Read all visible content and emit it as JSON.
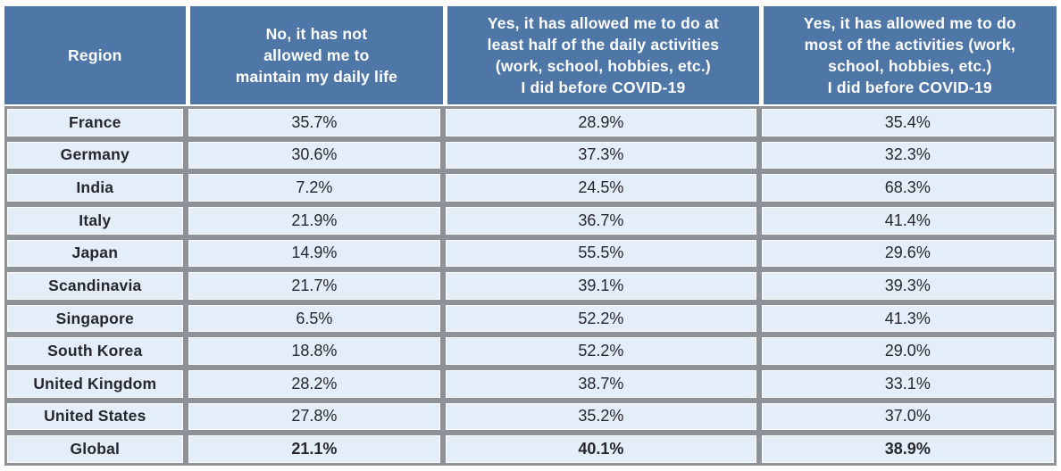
{
  "colors": {
    "header_bg": "#4E77A8",
    "header_text": "#FFFFFF",
    "cell_bg": "#E4EEF9",
    "grid_border": "#8C9298",
    "body_text": "#26262E",
    "page_bg": "#FFFFFF"
  },
  "table": {
    "columns": [
      {
        "id": "region",
        "label": "Region"
      },
      {
        "id": "no",
        "label": "No, it has not\nallowed me to\nmaintain my daily life"
      },
      {
        "id": "yes_half",
        "label": "Yes, it has allowed me to do at\nleast half of the daily activities\n(work, school, hobbies, etc.)\nI did before COVID-19"
      },
      {
        "id": "yes_most",
        "label": "Yes, it has allowed me to do\nmost of the activities (work,\nschool, hobbies, etc.)\nI did before COVID-19"
      }
    ],
    "rows": [
      {
        "region": "France",
        "values": [
          "35.7%",
          "28.9%",
          "35.4%"
        ],
        "is_total": false
      },
      {
        "region": "Germany",
        "values": [
          "30.6%",
          "37.3%",
          "32.3%"
        ],
        "is_total": false
      },
      {
        "region": "India",
        "values": [
          "7.2%",
          "24.5%",
          "68.3%"
        ],
        "is_total": false
      },
      {
        "region": "Italy",
        "values": [
          "21.9%",
          "36.7%",
          "41.4%"
        ],
        "is_total": false
      },
      {
        "region": "Japan",
        "values": [
          "14.9%",
          "55.5%",
          "29.6%"
        ],
        "is_total": false
      },
      {
        "region": "Scandinavia",
        "values": [
          "21.7%",
          "39.1%",
          "39.3%"
        ],
        "is_total": false
      },
      {
        "region": "Singapore",
        "values": [
          "6.5%",
          "52.2%",
          "41.3%"
        ],
        "is_total": false
      },
      {
        "region": "South Korea",
        "values": [
          "18.8%",
          "52.2%",
          "29.0%"
        ],
        "is_total": false
      },
      {
        "region": "United Kingdom",
        "values": [
          "28.2%",
          "38.7%",
          "33.1%"
        ],
        "is_total": false
      },
      {
        "region": "United States",
        "values": [
          "27.8%",
          "35.2%",
          "37.0%"
        ],
        "is_total": false
      },
      {
        "region": "Global",
        "values": [
          "21.1%",
          "40.1%",
          "38.9%"
        ],
        "is_total": true
      }
    ]
  },
  "chart_data": {
    "type": "table",
    "row_header": "Region",
    "categories": [
      "France",
      "Germany",
      "India",
      "Italy",
      "Japan",
      "Scandinavia",
      "Singapore",
      "South Korea",
      "United Kingdom",
      "United States",
      "Global"
    ],
    "series": [
      {
        "name": "No, it has not allowed me to maintain my daily life",
        "values": [
          35.7,
          30.6,
          7.2,
          21.9,
          14.9,
          21.7,
          6.5,
          18.8,
          28.2,
          27.8,
          21.1
        ]
      },
      {
        "name": "Yes, it has allowed me to do at least half of the daily activities (work, school, hobbies, etc.) I did before COVID-19",
        "values": [
          28.9,
          37.3,
          24.5,
          36.7,
          55.5,
          39.1,
          52.2,
          52.2,
          38.7,
          35.2,
          40.1
        ]
      },
      {
        "name": "Yes, it has allowed me to do most of the activities (work, school, hobbies, etc.) I did before COVID-19",
        "values": [
          35.4,
          32.3,
          68.3,
          41.4,
          29.6,
          39.3,
          41.3,
          29.0,
          33.1,
          37.0,
          38.9
        ]
      }
    ],
    "unit": "%"
  }
}
